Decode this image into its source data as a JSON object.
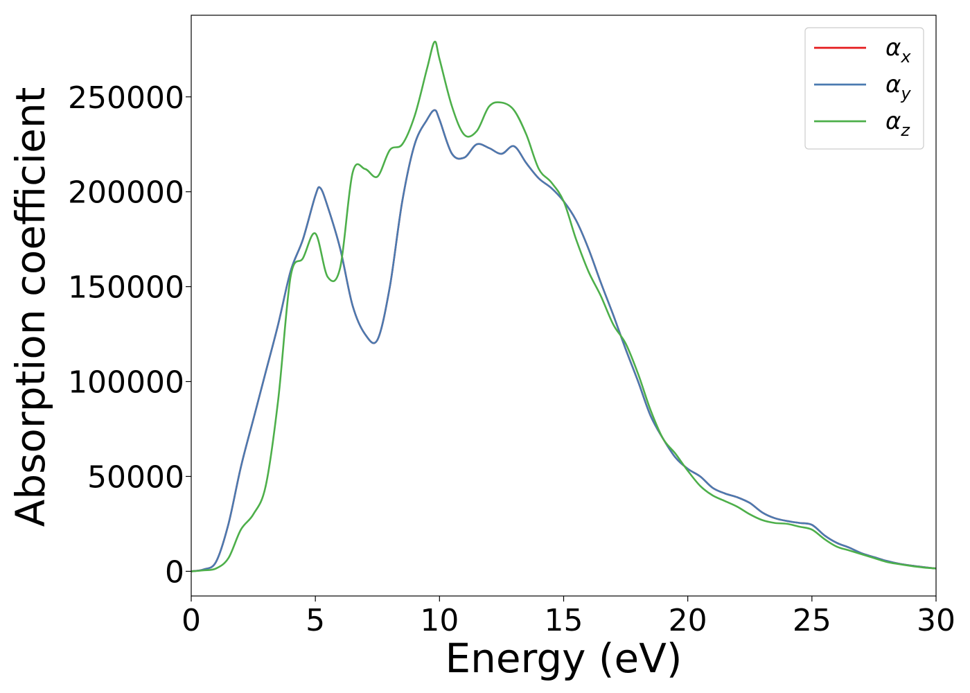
{
  "chart_data": {
    "type": "line",
    "xlabel": "Energy (eV)",
    "ylabel": "Absorption coefficient",
    "xlim": [
      0,
      30
    ],
    "ylim": [
      -13000,
      293000
    ],
    "xticks": [
      0,
      5,
      10,
      15,
      20,
      25,
      30
    ],
    "xtick_labels": [
      "0",
      "5",
      "10",
      "15",
      "20",
      "25",
      "30"
    ],
    "yticks": [
      0,
      50000,
      100000,
      150000,
      200000,
      250000
    ],
    "ytick_labels": [
      "0",
      "50000",
      "100000",
      "150000",
      "200000",
      "250000"
    ],
    "grid": false,
    "legend_position": "top-right",
    "series": [
      {
        "name": "α_x",
        "label_base": "α",
        "label_sub": "x",
        "color": "#e41a1c",
        "x": [
          0,
          0.5,
          1.0,
          1.5,
          2.0,
          2.5,
          3.0,
          3.5,
          4.0,
          4.5,
          5.0,
          5.2,
          5.5,
          6.0,
          6.5,
          7.0,
          7.5,
          8.0,
          8.5,
          9.0,
          9.5,
          9.8,
          10.0,
          10.5,
          11.0,
          11.5,
          12.0,
          12.5,
          13.0,
          13.5,
          14.0,
          14.5,
          15.0,
          15.5,
          16.0,
          16.5,
          17.0,
          17.5,
          18.0,
          18.5,
          19.0,
          19.5,
          20.0,
          20.5,
          21.0,
          21.5,
          22.0,
          22.5,
          23.0,
          23.5,
          24.0,
          24.5,
          25.0,
          25.5,
          26.0,
          26.5,
          27.0,
          27.5,
          28.0,
          28.5,
          29.0,
          29.5,
          30.0
        ],
        "values": [
          0,
          1000,
          5000,
          25000,
          55000,
          80000,
          105000,
          130000,
          158000,
          175000,
          198000,
          202000,
          192000,
          170000,
          140000,
          125000,
          122000,
          150000,
          195000,
          225000,
          238000,
          243000,
          238000,
          220000,
          218000,
          225000,
          223000,
          220000,
          224000,
          215000,
          207000,
          202000,
          195000,
          185000,
          170000,
          152000,
          135000,
          117000,
          100000,
          82000,
          70000,
          60000,
          54000,
          50000,
          44000,
          41000,
          39000,
          36000,
          31000,
          28000,
          26500,
          25500,
          24500,
          19000,
          15000,
          12500,
          9500,
          7500,
          5500,
          4000,
          3000,
          2200,
          1500
        ]
      },
      {
        "name": "α_y",
        "label_base": "α",
        "label_sub": "y",
        "color": "#4a7ab0",
        "x": [
          0,
          0.5,
          1.0,
          1.5,
          2.0,
          2.5,
          3.0,
          3.5,
          4.0,
          4.5,
          5.0,
          5.2,
          5.5,
          6.0,
          6.5,
          7.0,
          7.5,
          8.0,
          8.5,
          9.0,
          9.5,
          9.8,
          10.0,
          10.5,
          11.0,
          11.5,
          12.0,
          12.5,
          13.0,
          13.5,
          14.0,
          14.5,
          15.0,
          15.5,
          16.0,
          16.5,
          17.0,
          17.5,
          18.0,
          18.5,
          19.0,
          19.5,
          20.0,
          20.5,
          21.0,
          21.5,
          22.0,
          22.5,
          23.0,
          23.5,
          24.0,
          24.5,
          25.0,
          25.5,
          26.0,
          26.5,
          27.0,
          27.5,
          28.0,
          28.5,
          29.0,
          29.5,
          30.0
        ],
        "values": [
          0,
          1000,
          5000,
          25000,
          55000,
          80000,
          105000,
          130000,
          158000,
          175000,
          198000,
          202000,
          192000,
          170000,
          140000,
          125000,
          122000,
          150000,
          195000,
          225000,
          238000,
          243000,
          238000,
          220000,
          218000,
          225000,
          223000,
          220000,
          224000,
          215000,
          207000,
          202000,
          195000,
          185000,
          170000,
          152000,
          135000,
          117000,
          100000,
          82000,
          70000,
          60000,
          54000,
          50000,
          44000,
          41000,
          39000,
          36000,
          31000,
          28000,
          26500,
          25500,
          24500,
          19000,
          15000,
          12500,
          9500,
          7500,
          5500,
          4000,
          3000,
          2200,
          1500
        ]
      },
      {
        "name": "α_z",
        "label_base": "α",
        "label_sub": "z",
        "color": "#4daf4a",
        "x": [
          0,
          0.5,
          1.0,
          1.5,
          2.0,
          2.5,
          3.0,
          3.5,
          4.0,
          4.5,
          5.0,
          5.5,
          6.0,
          6.5,
          7.0,
          7.5,
          8.0,
          8.5,
          9.0,
          9.5,
          9.8,
          10.0,
          10.5,
          11.0,
          11.5,
          12.0,
          12.5,
          13.0,
          13.5,
          14.0,
          14.5,
          15.0,
          15.5,
          16.0,
          16.5,
          17.0,
          17.5,
          18.0,
          18.5,
          19.0,
          19.5,
          20.0,
          20.5,
          21.0,
          21.5,
          22.0,
          22.5,
          23.0,
          23.5,
          24.0,
          24.5,
          25.0,
          25.5,
          26.0,
          26.5,
          27.0,
          27.5,
          28.0,
          28.5,
          29.0,
          29.5,
          30.0
        ],
        "values": [
          0,
          500,
          1500,
          7000,
          22000,
          30000,
          45000,
          90000,
          155000,
          165000,
          178000,
          155000,
          160000,
          210000,
          212000,
          208000,
          222000,
          225000,
          240000,
          265000,
          279000,
          270000,
          245000,
          230000,
          232000,
          245000,
          247000,
          243000,
          230000,
          212000,
          205000,
          195000,
          175000,
          158000,
          145000,
          130000,
          120000,
          104000,
          85000,
          70000,
          62000,
          53000,
          45000,
          40000,
          37000,
          34000,
          30000,
          27000,
          25500,
          25000,
          23500,
          22000,
          17000,
          13000,
          11000,
          9000,
          7000,
          5000,
          3800,
          2800,
          2000,
          1500
        ]
      }
    ]
  }
}
